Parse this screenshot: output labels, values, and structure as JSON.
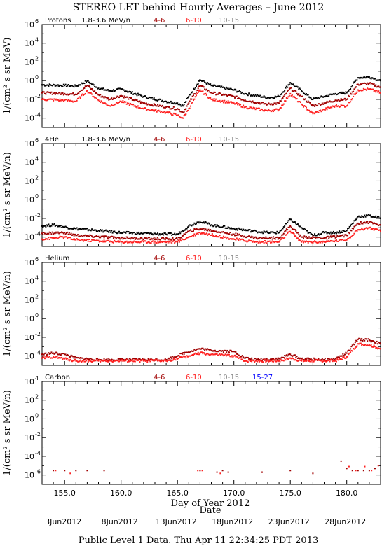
{
  "title": "STEREO LET behind Hourly Averages – June 2012",
  "footer": "Public Level 1 Data. Thu Apr 11 22:34:25 PDT 2013",
  "x_axis": {
    "label": "Day of Year 2012",
    "sublabel": "Date",
    "range": [
      153,
      183
    ],
    "ticks": [
      "155.0",
      "160.0",
      "165.0",
      "170.0",
      "175.0",
      "180.0"
    ],
    "tick_values": [
      155,
      160,
      165,
      170,
      175,
      180
    ],
    "dates": [
      "3Jun2012",
      "8Jun2012",
      "13Jun2012",
      "18Jun2012",
      "23Jun2012",
      "28Jun2012"
    ],
    "date_days": [
      155,
      160,
      165,
      170,
      175,
      180
    ]
  },
  "colors": {
    "e1": "#000000",
    "e2": "#a00000",
    "e3": "#ff2020",
    "e4": "#909090",
    "e5": "#0000ff"
  },
  "chart_data": [
    {
      "type": "scatter",
      "species": "Protons",
      "legend": [
        "1.8-3.6 MeV/n",
        "4-6",
        "6-10",
        "10-15"
      ],
      "ylabel": "1/(cm² s sr MeV)",
      "y_scale": "log",
      "ylim": [
        1e-05,
        1000000.0
      ],
      "ytick_exponents": [
        -4,
        -2,
        0,
        2,
        4,
        6
      ],
      "series": [
        {
          "name": "1.8-3.6 MeV/n",
          "x": [
            153,
            155,
            156,
            157,
            158,
            159,
            160,
            162,
            164,
            165,
            165.5,
            166,
            167,
            168,
            170,
            171,
            173,
            174,
            175,
            176,
            177,
            178,
            179,
            180,
            181,
            182,
            183
          ],
          "y": [
            0.35,
            0.3,
            0.25,
            0.9,
            0.15,
            0.08,
            0.12,
            0.02,
            0.006,
            0.004,
            0.002,
            0.02,
            1.2,
            0.3,
            0.1,
            0.04,
            0.015,
            0.02,
            0.6,
            0.08,
            0.01,
            0.02,
            0.04,
            0.05,
            2.0,
            2.5,
            1.0
          ]
        },
        {
          "name": "4-6",
          "x": [
            153,
            155,
            156,
            157,
            158,
            159,
            160,
            162,
            164,
            165,
            165.5,
            166,
            167,
            168,
            170,
            171,
            173,
            174,
            175,
            176,
            177,
            178,
            179,
            180,
            181,
            182,
            183
          ],
          "y": [
            0.05,
            0.04,
            0.035,
            0.3,
            0.03,
            0.01,
            0.025,
            0.004,
            0.0015,
            0.001,
            0.0004,
            0.004,
            0.3,
            0.05,
            0.02,
            0.008,
            0.003,
            0.004,
            0.15,
            0.02,
            0.002,
            0.004,
            0.008,
            0.01,
            0.4,
            0.5,
            0.2
          ]
        },
        {
          "name": "6-10",
          "x": [
            153,
            155,
            156,
            157,
            158,
            159,
            160,
            162,
            164,
            165,
            165.5,
            166,
            167,
            168,
            170,
            171,
            173,
            174,
            175,
            176,
            177,
            178,
            179,
            180,
            181,
            182,
            183
          ],
          "y": [
            0.01,
            0.008,
            0.006,
            0.08,
            0.008,
            0.002,
            0.006,
            0.001,
            0.0004,
            0.0002,
            0.0001,
            0.001,
            0.1,
            0.01,
            0.004,
            0.0015,
            0.0006,
            0.0008,
            0.04,
            0.003,
            0.0003,
            0.0008,
            0.002,
            0.002,
            0.1,
            0.12,
            0.05
          ]
        }
      ]
    },
    {
      "type": "scatter",
      "species": "4He",
      "legend": [
        "1.8-3.6 MeV/n",
        "4-6",
        "6-10",
        "10-15"
      ],
      "ylabel": "1/(cm² s sr MeV/n)",
      "y_scale": "log",
      "ylim": [
        1e-05,
        1000000.0
      ],
      "ytick_exponents": [
        -4,
        -2,
        0,
        2,
        4,
        6
      ],
      "series": [
        {
          "name": "1.8-3.6 MeV/n",
          "x": [
            153,
            154,
            155,
            156,
            158,
            160,
            162,
            164,
            165,
            166,
            167,
            168,
            170,
            172,
            173,
            174,
            175,
            176,
            177,
            178,
            179,
            180,
            181,
            182,
            183
          ],
          "y": [
            0.0015,
            0.002,
            0.0012,
            0.0008,
            0.0005,
            0.0003,
            0.00025,
            0.0002,
            0.0002,
            0.0015,
            0.005,
            0.002,
            0.0008,
            0.0004,
            0.0003,
            0.0003,
            0.008,
            0.001,
            0.00015,
            0.0003,
            0.0003,
            0.0005,
            0.015,
            0.02,
            0.01
          ]
        },
        {
          "name": "4-6",
          "x": [
            153,
            155,
            156,
            160,
            165,
            166,
            167,
            170,
            172,
            174,
            175,
            176,
            178,
            180,
            181,
            182,
            183
          ],
          "y": [
            0.00025,
            0.0003,
            0.00015,
            8e-05,
            6e-05,
            0.0004,
            0.0008,
            0.0002,
            8e-05,
            8e-05,
            0.0015,
            0.0001,
            8e-05,
            0.00015,
            0.003,
            0.004,
            0.002
          ]
        },
        {
          "name": "6-10",
          "x": [
            153,
            155,
            156,
            160,
            165,
            166,
            167,
            170,
            172,
            174,
            175,
            176,
            178,
            180,
            181,
            182,
            183
          ],
          "y": [
            6e-05,
            0.0001,
            5e-05,
            3e-05,
            3e-05,
            0.0001,
            0.0003,
            6e-05,
            3e-05,
            3e-05,
            0.0004,
            3e-05,
            3e-05,
            5e-05,
            0.0006,
            0.001,
            0.0004
          ]
        }
      ]
    },
    {
      "type": "scatter",
      "species": "Helium",
      "legend": [
        "4-6",
        "6-10",
        "10-15"
      ],
      "ylabel": "1/(cm² s sr MeV/n)",
      "y_scale": "log",
      "ylim": [
        1e-05,
        1000000.0
      ],
      "ytick_exponents": [
        -4,
        -2,
        0,
        2,
        4,
        6
      ],
      "series": [
        {
          "name": "4-6",
          "x": [
            153,
            154,
            155,
            156,
            158,
            160,
            162,
            164,
            166,
            167,
            168,
            170,
            171,
            172,
            174,
            175,
            176,
            178,
            179,
            180,
            181,
            182,
            183
          ],
          "y": [
            0.00015,
            0.0002,
            0.00015,
            6e-05,
            4e-05,
            4e-05,
            4e-05,
            4e-05,
            0.0003,
            0.0006,
            0.0004,
            0.0003,
            6e-05,
            4e-05,
            5e-05,
            0.00015,
            5e-05,
            4e-05,
            5e-05,
            0.0002,
            0.006,
            0.005,
            0.002
          ]
        },
        {
          "name": "6-10",
          "x": [
            153,
            154,
            155,
            156,
            158,
            160,
            162,
            164,
            166,
            167,
            168,
            170,
            171,
            172,
            174,
            175,
            176,
            178,
            179,
            180,
            181,
            182,
            183
          ],
          "y": [
            6e-05,
            8e-05,
            5e-05,
            3e-05,
            3e-05,
            3e-05,
            3e-05,
            3e-05,
            0.0001,
            0.0002,
            0.00015,
            0.0001,
            3e-05,
            3e-05,
            3e-05,
            6e-05,
            3e-05,
            3e-05,
            3e-05,
            8e-05,
            0.002,
            0.0015,
            0.0006
          ]
        }
      ]
    },
    {
      "type": "scatter",
      "species": "Carbon",
      "legend": [
        "4-6",
        "6-10",
        "10-15",
        "15-27"
      ],
      "ylabel": "1/(cm² s sr MeV/n)",
      "y_scale": "log",
      "ylim": [
        1e-07,
        10000.0
      ],
      "ytick_exponents": [
        -6,
        -4,
        -2,
        0,
        2,
        4
      ],
      "series": [
        {
          "name": "4-6",
          "x": [
            154,
            155,
            156,
            157,
            158.5,
            167,
            168.5,
            169,
            169.5,
            172.5,
            175,
            177,
            179.5,
            180,
            180.5,
            181,
            181.5,
            182,
            182.5
          ],
          "y": [
            3e-06,
            3e-06,
            3e-06,
            3e-06,
            3e-06,
            3e-06,
            2e-06,
            3e-06,
            2e-06,
            2e-06,
            3e-06,
            1.5e-06,
            3e-05,
            5e-06,
            3e-06,
            3e-06,
            3e-06,
            3e-06,
            5e-06
          ]
        },
        {
          "name": "6-10",
          "x": [
            154.2,
            155.5,
            166.8,
            167.2,
            168.8,
            180.2,
            180.8,
            181.6,
            182.2,
            182.8
          ],
          "y": [
            3e-06,
            1.5e-06,
            3e-06,
            3e-06,
            1.5e-06,
            8e-06,
            3e-06,
            8e-06,
            3e-06,
            1e-05
          ]
        }
      ]
    }
  ]
}
